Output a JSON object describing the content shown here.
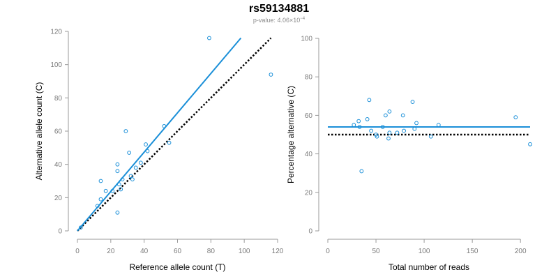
{
  "figure": {
    "title": "rs59134881",
    "pvalue_label": "p-value:",
    "pvalue_mantissa": "4.06",
    "pvalue_times": "×10",
    "pvalue_exponent": "−4"
  },
  "colors": {
    "points": "#1a8fd8",
    "fit": "#1a8fd8",
    "reference": "#000000",
    "axis": "#9a9a9a",
    "tick_text": "#7a7a7a"
  },
  "chart_data": [
    {
      "type": "scatter",
      "name": "allele-counts",
      "xlabel": "Reference allele count (T)",
      "ylabel": "Alternative allele count (C)",
      "xlim": [
        0,
        120
      ],
      "ylim": [
        0,
        120
      ],
      "xticks": [
        0,
        20,
        40,
        60,
        80,
        100,
        120
      ],
      "yticks": [
        0,
        20,
        40,
        60,
        80,
        100,
        120
      ],
      "points": [
        {
          "x": 2,
          "y": 2
        },
        {
          "x": 12,
          "y": 15
        },
        {
          "x": 14,
          "y": 19
        },
        {
          "x": 14,
          "y": 30
        },
        {
          "x": 17,
          "y": 24
        },
        {
          "x": 21,
          "y": 24
        },
        {
          "x": 24,
          "y": 11
        },
        {
          "x": 24,
          "y": 36
        },
        {
          "x": 24,
          "y": 40
        },
        {
          "x": 25,
          "y": 28
        },
        {
          "x": 26,
          "y": 25
        },
        {
          "x": 27,
          "y": 31
        },
        {
          "x": 29,
          "y": 60
        },
        {
          "x": 31,
          "y": 47
        },
        {
          "x": 32,
          "y": 33
        },
        {
          "x": 33,
          "y": 31
        },
        {
          "x": 35,
          "y": 38
        },
        {
          "x": 38,
          "y": 41
        },
        {
          "x": 41,
          "y": 52
        },
        {
          "x": 42,
          "y": 48
        },
        {
          "x": 52,
          "y": 63
        },
        {
          "x": 55,
          "y": 53
        },
        {
          "x": 79,
          "y": 116
        },
        {
          "x": 116,
          "y": 94
        }
      ],
      "fit_line": {
        "x1": 0,
        "y1": 0,
        "x2": 98,
        "y2": 116
      },
      "reference_line": {
        "x1": 0,
        "y1": 0,
        "x2": 116,
        "y2": 116
      }
    },
    {
      "type": "scatter",
      "name": "percentage-alternative",
      "xlabel": "Total number of reads",
      "ylabel": "Percentage alternative (C)",
      "xlim": [
        0,
        210
      ],
      "ylim": [
        0,
        100
      ],
      "xticks": [
        0,
        50,
        100,
        150,
        200
      ],
      "yticks": [
        0,
        20,
        40,
        60,
        80,
        100
      ],
      "points": [
        {
          "x": 27,
          "y": 55
        },
        {
          "x": 32,
          "y": 57
        },
        {
          "x": 33,
          "y": 54
        },
        {
          "x": 35,
          "y": 31
        },
        {
          "x": 41,
          "y": 58
        },
        {
          "x": 43,
          "y": 68
        },
        {
          "x": 45,
          "y": 52
        },
        {
          "x": 50,
          "y": 50
        },
        {
          "x": 51,
          "y": 49
        },
        {
          "x": 57,
          "y": 54
        },
        {
          "x": 60,
          "y": 60
        },
        {
          "x": 63,
          "y": 48
        },
        {
          "x": 64,
          "y": 51
        },
        {
          "x": 64,
          "y": 62
        },
        {
          "x": 72,
          "y": 51
        },
        {
          "x": 78,
          "y": 60
        },
        {
          "x": 79,
          "y": 52
        },
        {
          "x": 88,
          "y": 67
        },
        {
          "x": 90,
          "y": 53
        },
        {
          "x": 92,
          "y": 56
        },
        {
          "x": 107,
          "y": 49
        },
        {
          "x": 115,
          "y": 55
        },
        {
          "x": 195,
          "y": 59
        },
        {
          "x": 210,
          "y": 45
        }
      ],
      "fit_line": {
        "x1": 0,
        "y1": 54,
        "x2": 210,
        "y2": 54
      },
      "reference_line": {
        "x1": 0,
        "y1": 50,
        "x2": 210,
        "y2": 50
      }
    }
  ]
}
